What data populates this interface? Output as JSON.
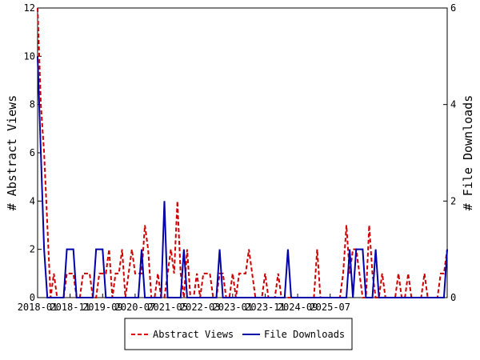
{
  "chart_data": {
    "type": "line",
    "x_start": "2018-01",
    "x_ticks": [
      "2018-01",
      "2018-11",
      "2019-09",
      "2020-07",
      "2021-05",
      "2022-03",
      "2023-01",
      "2023-11",
      "2024-09",
      "2025-07"
    ],
    "ylabel_left": "# Abstract Views",
    "ylabel_right": "# File Downloads",
    "ylim_left": [
      0,
      12
    ],
    "ylim_right": [
      0,
      6
    ],
    "yticks_left": [
      0,
      2,
      4,
      6,
      8,
      10,
      12
    ],
    "yticks_right": [
      0,
      2,
      4,
      6
    ],
    "legend_position": "bottom",
    "series": [
      {
        "name": "Abstract Views",
        "axis": "left",
        "color": "#cc0000",
        "style": "dashed",
        "values": [
          12,
          8,
          6,
          3,
          0,
          1,
          0,
          0,
          0,
          1,
          1,
          1,
          0,
          0,
          1,
          1,
          1,
          0,
          0,
          1,
          1,
          1,
          2,
          0,
          1,
          1,
          2,
          0,
          1,
          2,
          1,
          1,
          1,
          3,
          2,
          0,
          0,
          1,
          0,
          0,
          1,
          2,
          1,
          4,
          1,
          0,
          2,
          0,
          0,
          1,
          0,
          1,
          1,
          1,
          0,
          0,
          1,
          1,
          0,
          0,
          1,
          0,
          1,
          1,
          1,
          2,
          1,
          0,
          0,
          0,
          1,
          0,
          0,
          0,
          1,
          0,
          0,
          0,
          0,
          0,
          0,
          0,
          0,
          0,
          0,
          0,
          2,
          0,
          0,
          0,
          0,
          0,
          0,
          0,
          1,
          3,
          1,
          2,
          2,
          1,
          0,
          0,
          3,
          1,
          0,
          0,
          1,
          0,
          0,
          0,
          0,
          1,
          0,
          0,
          1,
          0,
          0,
          0,
          0,
          1,
          0,
          0,
          0,
          0,
          1,
          1,
          2
        ]
      },
      {
        "name": "File Downloads",
        "axis": "right",
        "color": "#0000aa",
        "style": "solid",
        "values": [
          5,
          3,
          1,
          0,
          0,
          0,
          0,
          0,
          0,
          1,
          1,
          1,
          0,
          0,
          0,
          0,
          0,
          0,
          1,
          1,
          1,
          0,
          0,
          0,
          0,
          0,
          0,
          0,
          0,
          0,
          0,
          0,
          1,
          0,
          0,
          0,
          0,
          0,
          0,
          2,
          0,
          0,
          0,
          0,
          0,
          1,
          0,
          0,
          0,
          0,
          0,
          0,
          0,
          0,
          0,
          0,
          1,
          0,
          0,
          0,
          0,
          0,
          0,
          0,
          0,
          0,
          0,
          0,
          0,
          0,
          0,
          0,
          0,
          0,
          0,
          0,
          0,
          1,
          0,
          0,
          0,
          0,
          0,
          0,
          0,
          0,
          0,
          0,
          0,
          0,
          0,
          0,
          0,
          0,
          0,
          0,
          1,
          0,
          1,
          1,
          1,
          0,
          0,
          0,
          1,
          0,
          0,
          0,
          0,
          0,
          0,
          0,
          0,
          0,
          0,
          0,
          0,
          0,
          0,
          0,
          0,
          0,
          0,
          0,
          0,
          0,
          1
        ]
      }
    ]
  }
}
